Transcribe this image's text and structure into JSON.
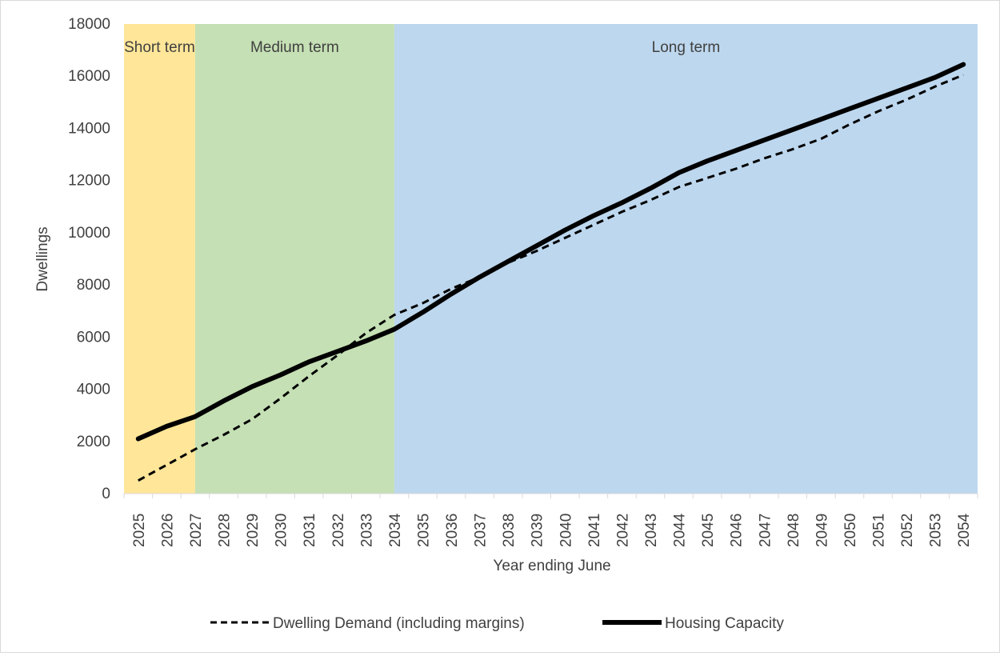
{
  "chart_data": {
    "type": "line",
    "title": "",
    "xlabel": "Year ending June",
    "ylabel": "Dwellings",
    "ylim": [
      0,
      18000
    ],
    "yticks": [
      0,
      2000,
      4000,
      6000,
      8000,
      10000,
      12000,
      14000,
      16000,
      18000
    ],
    "grid": false,
    "legend_position": "bottom",
    "categories": [
      "2025",
      "2026",
      "2027",
      "2028",
      "2029",
      "2030",
      "2031",
      "2032",
      "2033",
      "2034",
      "2035",
      "2036",
      "2037",
      "2038",
      "2039",
      "2040",
      "2041",
      "2042",
      "2043",
      "2044",
      "2045",
      "2046",
      "2047",
      "2048",
      "2049",
      "2050",
      "2051",
      "2052",
      "2053",
      "2054"
    ],
    "bands": [
      {
        "label": "Short term",
        "from": "2025",
        "to": "2027",
        "color": "#ffe699"
      },
      {
        "label": "Medium term",
        "from": "2028",
        "to": "2034",
        "color": "#c5e0b4"
      },
      {
        "label": "Long term",
        "from": "2035",
        "to": "2054",
        "color": "#bdd7ee"
      }
    ],
    "series": [
      {
        "name": "Dwelling Demand (including margins)",
        "style": "dashed",
        "color": "#000000",
        "values": [
          500,
          1100,
          1700,
          2250,
          2850,
          3650,
          4500,
          5300,
          6150,
          6850,
          7300,
          7850,
          8300,
          8850,
          9300,
          9800,
          10300,
          10800,
          11250,
          11750,
          12100,
          12450,
          12850,
          13200,
          13600,
          14150,
          14650,
          15100,
          15600,
          16050
        ]
      },
      {
        "name": "Housing Capacity",
        "style": "solid",
        "color": "#000000",
        "values": [
          2100,
          2580,
          2950,
          3550,
          4100,
          4550,
          5050,
          5450,
          5850,
          6300,
          6950,
          7650,
          8300,
          8900,
          9500,
          10100,
          10650,
          11150,
          11700,
          12300,
          12750,
          13150,
          13550,
          13950,
          14350,
          14750,
          15150,
          15550,
          15950,
          16450
        ]
      }
    ]
  }
}
